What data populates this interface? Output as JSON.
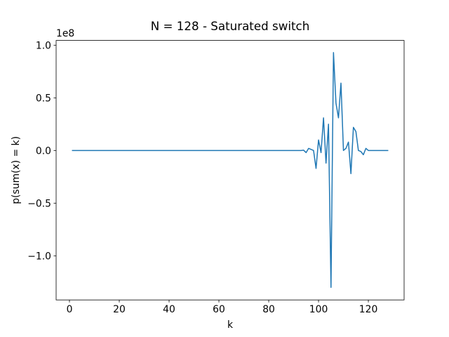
{
  "chart_data": {
    "type": "line",
    "title": "N = 128 - Saturated switch",
    "xlabel": "k",
    "ylabel": "p(sum(x) = k)",
    "y_offset_text": "1e8",
    "x": [
      1,
      2,
      3,
      4,
      5,
      6,
      7,
      8,
      9,
      10,
      11,
      12,
      13,
      14,
      15,
      16,
      17,
      18,
      19,
      20,
      21,
      22,
      23,
      24,
      25,
      26,
      27,
      28,
      29,
      30,
      31,
      32,
      33,
      34,
      35,
      36,
      37,
      38,
      39,
      40,
      41,
      42,
      43,
      44,
      45,
      46,
      47,
      48,
      49,
      50,
      51,
      52,
      53,
      54,
      55,
      56,
      57,
      58,
      59,
      60,
      61,
      62,
      63,
      64,
      65,
      66,
      67,
      68,
      69,
      70,
      71,
      72,
      73,
      74,
      75,
      76,
      77,
      78,
      79,
      80,
      81,
      82,
      83,
      84,
      85,
      86,
      87,
      88,
      89,
      90,
      91,
      92,
      93,
      94,
      95,
      96,
      97,
      98,
      99,
      100,
      101,
      102,
      103,
      104,
      105,
      106,
      107,
      108,
      109,
      110,
      111,
      112,
      113,
      114,
      115,
      116,
      117,
      118,
      119,
      120,
      121,
      122,
      123,
      124,
      125,
      126,
      127,
      128
    ],
    "series": [
      {
        "name": "p(sum(x) = k)",
        "color": "#1f77b4",
        "values": [
          0,
          0,
          0,
          0,
          0,
          0,
          0,
          0,
          0,
          0,
          0,
          0,
          0,
          0,
          0,
          0,
          0,
          0,
          0,
          0,
          0,
          0,
          0,
          0,
          0,
          0,
          0,
          0,
          0,
          0,
          0,
          0,
          0,
          0,
          0,
          0,
          0,
          0,
          0,
          0,
          0,
          0,
          0,
          0,
          0,
          0,
          0,
          0,
          0,
          0,
          0,
          0,
          0,
          0,
          0,
          0,
          0,
          0,
          0,
          0,
          0,
          0,
          0,
          0,
          0,
          0,
          0,
          0,
          0,
          0,
          0,
          0,
          0,
          0,
          0,
          0,
          0,
          0,
          0,
          0,
          0,
          0,
          0,
          0,
          0,
          0,
          0,
          0,
          0,
          0,
          0,
          0,
          0,
          0.003,
          -0.02,
          0.02,
          0.01,
          0,
          -0.17,
          0.1,
          -0.02,
          0.31,
          -0.12,
          0.25,
          -1.3,
          0.93,
          0.45,
          0.31,
          0.64,
          0,
          0.02,
          0.08,
          -0.22,
          0.22,
          0.18,
          0,
          -0.01,
          -0.04,
          0.02,
          0,
          0,
          0,
          0,
          0,
          0,
          0,
          0,
          0
        ]
      }
    ],
    "xlim": [
      -5.35,
      134.35
    ],
    "xticks": [
      0,
      20,
      40,
      60,
      80,
      100,
      120
    ],
    "ylim": [
      -1.419,
      1.045
    ],
    "yticks": [
      {
        "value": -1,
        "label": "−1.0"
      },
      {
        "value": -0.5,
        "label": "−0.5"
      },
      {
        "value": 0,
        "label": "0.0"
      },
      {
        "value": 0.5,
        "label": "0.5"
      },
      {
        "value": 1,
        "label": "1.0"
      }
    ],
    "grid": false
  }
}
